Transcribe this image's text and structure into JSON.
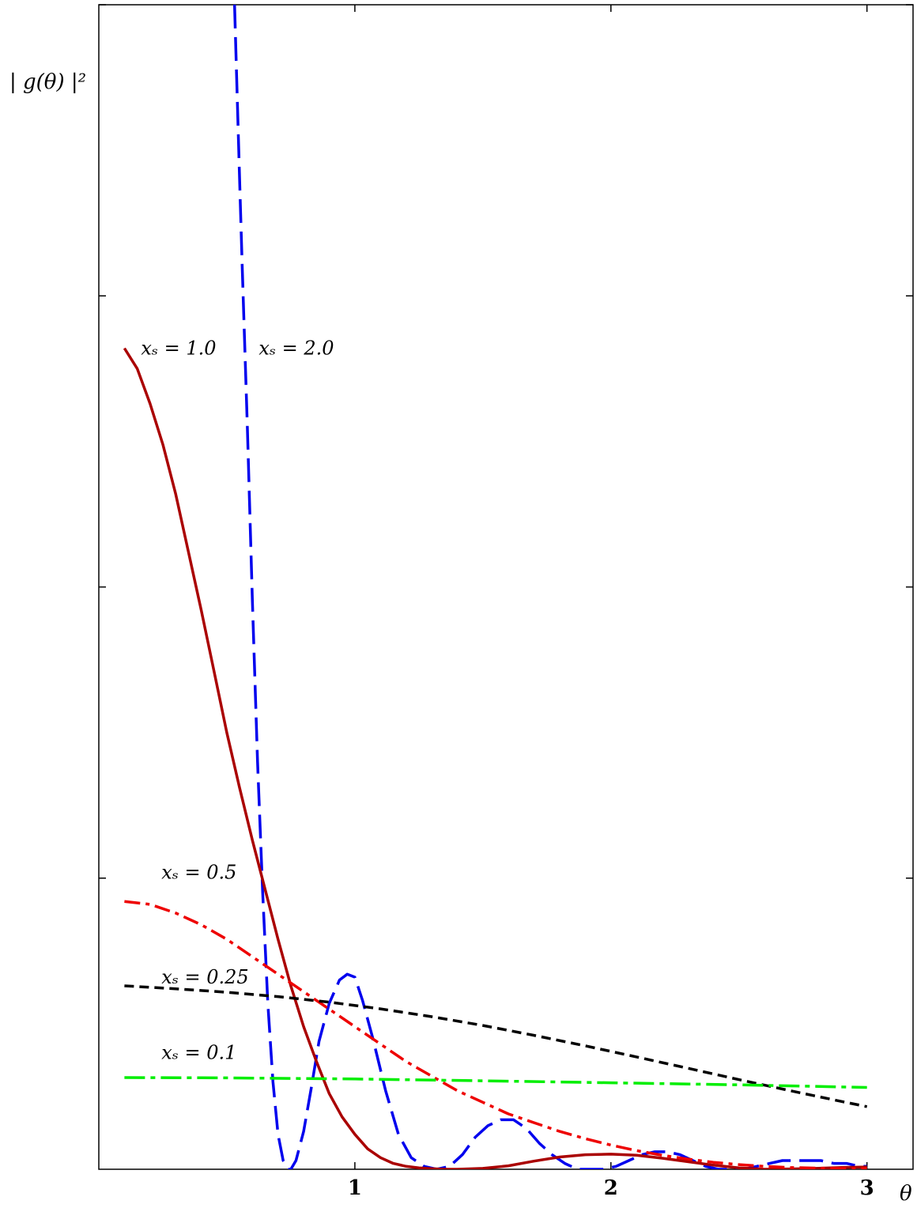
{
  "chart_data": {
    "type": "line",
    "title": "",
    "xlabel": "θ",
    "ylabel": "| g(θ) |²",
    "xlim": [
      0,
      3.18
    ],
    "ylim": [
      0,
      4
    ],
    "grid": false,
    "x_ticks": [
      {
        "value": 1,
        "label": "1"
      },
      {
        "value": 2,
        "label": "2"
      },
      {
        "value": 3,
        "label": "3"
      }
    ],
    "y_ticks": [
      1,
      2,
      3,
      4
    ],
    "series": [
      {
        "name": "x_s = 2.0",
        "label": "xₛ = 2.0",
        "color": "#0000ee",
        "style": "long-dash",
        "label_at": [
          0.6,
          2.82
        ],
        "x": [
          0.53,
          0.54,
          0.55,
          0.56,
          0.58,
          0.6,
          0.62,
          0.64,
          0.66,
          0.68,
          0.7,
          0.72,
          0.74,
          0.75,
          0.77,
          0.8,
          0.83,
          0.86,
          0.9,
          0.94,
          0.97,
          1.0,
          1.03,
          1.07,
          1.12,
          1.17,
          1.22,
          1.27,
          1.32,
          1.37,
          1.42,
          1.47,
          1.52,
          1.57,
          1.62,
          1.67,
          1.72,
          1.77,
          1.82,
          1.87,
          1.92,
          1.97,
          2.02,
          2.07,
          2.12,
          2.17,
          2.22,
          2.27,
          2.32,
          2.37,
          2.42,
          2.47,
          2.52,
          2.57,
          2.62,
          2.67,
          2.72,
          2.77,
          2.82,
          2.87,
          2.92,
          2.97,
          3.0
        ],
        "y": [
          4.0,
          3.7,
          3.4,
          3.1,
          2.55,
          1.95,
          1.4,
          0.95,
          0.57,
          0.3,
          0.12,
          0.03,
          0.0,
          0.0,
          0.03,
          0.13,
          0.28,
          0.44,
          0.57,
          0.65,
          0.67,
          0.66,
          0.58,
          0.45,
          0.27,
          0.12,
          0.04,
          0.01,
          0.0,
          0.01,
          0.05,
          0.11,
          0.15,
          0.17,
          0.17,
          0.14,
          0.09,
          0.05,
          0.02,
          0.0,
          0.0,
          0.0,
          0.01,
          0.03,
          0.05,
          0.06,
          0.06,
          0.05,
          0.03,
          0.01,
          0.0,
          0.0,
          0.0,
          0.01,
          0.02,
          0.03,
          0.03,
          0.03,
          0.03,
          0.02,
          0.02,
          0.01,
          0.01
        ]
      },
      {
        "name": "x_s = 1.0",
        "label": "xₛ = 1.0",
        "color": "#aa0000",
        "style": "solid",
        "label_at": [
          0.14,
          2.82
        ],
        "x": [
          0.1,
          0.15,
          0.2,
          0.25,
          0.3,
          0.35,
          0.4,
          0.45,
          0.5,
          0.55,
          0.6,
          0.65,
          0.7,
          0.75,
          0.8,
          0.85,
          0.9,
          0.95,
          1.0,
          1.05,
          1.1,
          1.15,
          1.2,
          1.25,
          1.3,
          1.35,
          1.4,
          1.5,
          1.6,
          1.7,
          1.8,
          1.9,
          2.0,
          2.1,
          2.2,
          2.3,
          2.4,
          2.5,
          2.6,
          2.7,
          2.8,
          2.9,
          3.0
        ],
        "y": [
          2.82,
          2.75,
          2.63,
          2.49,
          2.32,
          2.12,
          1.92,
          1.71,
          1.5,
          1.31,
          1.13,
          0.96,
          0.79,
          0.63,
          0.49,
          0.37,
          0.26,
          0.18,
          0.12,
          0.07,
          0.04,
          0.02,
          0.01,
          0.005,
          0.002,
          0.0,
          0.0,
          0.003,
          0.012,
          0.028,
          0.042,
          0.05,
          0.052,
          0.048,
          0.038,
          0.026,
          0.014,
          0.005,
          0.0,
          0.001,
          0.003,
          0.006,
          0.008
        ]
      },
      {
        "name": "x_s = 0.5",
        "label": "xₛ = 0.5",
        "color": "#ee0000",
        "style": "dash-dot",
        "label_at": [
          0.22,
          1.02
        ],
        "x": [
          0.1,
          0.2,
          0.3,
          0.4,
          0.5,
          0.6,
          0.7,
          0.8,
          0.9,
          1.0,
          1.1,
          1.2,
          1.3,
          1.4,
          1.5,
          1.6,
          1.7,
          1.8,
          1.9,
          2.0,
          2.1,
          2.2,
          2.3,
          2.4,
          2.5,
          2.6,
          2.7,
          2.8,
          2.9,
          3.0
        ],
        "y": [
          0.92,
          0.91,
          0.88,
          0.84,
          0.79,
          0.73,
          0.67,
          0.61,
          0.55,
          0.49,
          0.43,
          0.37,
          0.32,
          0.27,
          0.23,
          0.19,
          0.16,
          0.13,
          0.105,
          0.083,
          0.064,
          0.048,
          0.035,
          0.024,
          0.016,
          0.01,
          0.006,
          0.004,
          0.003,
          0.003
        ]
      },
      {
        "name": "x_s = 0.25",
        "label": "xₛ = 0.25",
        "color": "#000000",
        "style": "short-dash",
        "label_at": [
          0.22,
          0.66
        ],
        "x": [
          0.1,
          0.3,
          0.5,
          0.7,
          0.9,
          1.1,
          1.3,
          1.5,
          1.7,
          1.9,
          2.1,
          2.3,
          2.5,
          2.7,
          2.9,
          3.0
        ],
        "y": [
          0.63,
          0.62,
          0.608,
          0.593,
          0.574,
          0.551,
          0.524,
          0.494,
          0.46,
          0.424,
          0.386,
          0.347,
          0.308,
          0.27,
          0.233,
          0.215
        ]
      },
      {
        "name": "x_s = 0.1",
        "label": "xₛ = 0.1",
        "color": "#00ee00",
        "style": "long-dash-dot",
        "label_at": [
          0.22,
          0.4
        ],
        "x": [
          0.1,
          0.5,
          1.0,
          1.5,
          2.0,
          2.5,
          3.0
        ],
        "y": [
          0.315,
          0.314,
          0.31,
          0.304,
          0.297,
          0.29,
          0.281
        ]
      }
    ]
  }
}
